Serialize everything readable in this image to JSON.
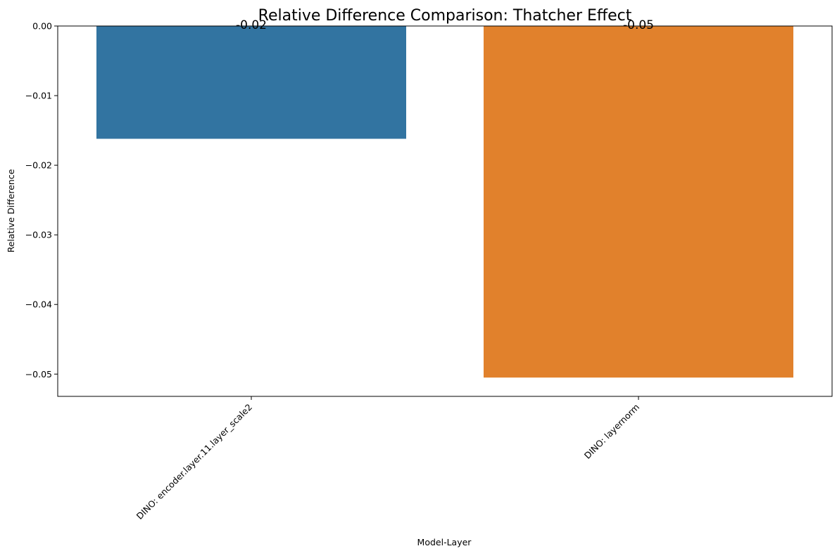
{
  "chart_data": {
    "type": "bar",
    "title": "Relative Difference Comparison: Thatcher Effect",
    "xlabel": "Model-Layer",
    "ylabel": "Relative Difference",
    "categories": [
      "DINO: encoder.layer.11.layer_scale2",
      "DINO: layernorm"
    ],
    "values": [
      -0.0162,
      -0.0505
    ],
    "data_labels": [
      "-0.02",
      "-0.05"
    ],
    "colors": [
      "#3274a1",
      "#e1812c"
    ],
    "ylim": [
      -0.0532,
      0.0
    ],
    "yticks": [
      0.0,
      -0.01,
      -0.02,
      -0.03,
      -0.04,
      -0.05
    ],
    "ytick_labels": [
      "0.00",
      "−0.01",
      "−0.02",
      "−0.03",
      "−0.04",
      "−0.05"
    ],
    "grid": false,
    "legend": "none"
  }
}
